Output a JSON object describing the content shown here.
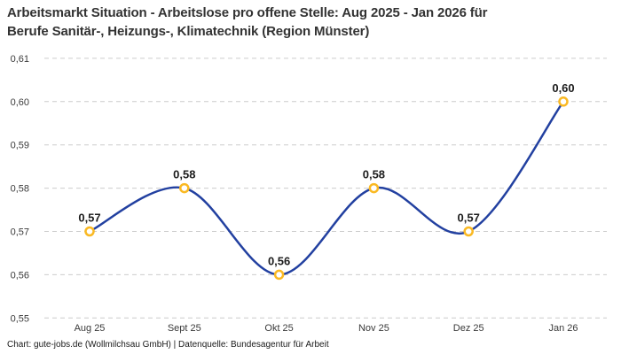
{
  "title": {
    "line1": "Arbeitsmarkt Situation - Arbeitslose pro offene Stelle: Aug 2025 - Jan 2026 für",
    "line2": "Berufe Sanitär-, Heizungs-, Klimatechnik (Region Münster)"
  },
  "footer": "Chart: gute-jobs.de (Wollmilchsau GmbH) | Datenquelle: Bundesagentur für Arbeit",
  "colors": {
    "line": "#2240a0",
    "marker_ring": "#fab923",
    "marker_fill": "#ffffff",
    "grid": "#cccccc"
  },
  "chart_data": {
    "type": "line",
    "title": "Arbeitsmarkt Situation - Arbeitslose pro offene Stelle: Aug 2025 - Jan 2026 für Berufe Sanitär-, Heizungs-, Klimatechnik (Region Münster)",
    "categories": [
      "Aug 25",
      "Sept 25",
      "Okt 25",
      "Nov 25",
      "Dez 25",
      "Jan 26"
    ],
    "values": [
      0.57,
      0.58,
      0.56,
      0.58,
      0.57,
      0.6
    ],
    "point_labels": [
      "0,57",
      "0,58",
      "0,56",
      "0,58",
      "0,57",
      "0,60"
    ],
    "y_ticks": [
      "0,61",
      "0,60",
      "0,59",
      "0,58",
      "0,57",
      "0,56",
      "0,55"
    ],
    "y_tick_values": [
      0.61,
      0.6,
      0.59,
      0.58,
      0.57,
      0.56,
      0.55
    ],
    "ylim": [
      0.55,
      0.61
    ],
    "xlabel": "",
    "ylabel": "",
    "grid": "dashed-horizontal",
    "legend": "none",
    "line_style": "smooth-spline",
    "marker_style": "open-circle"
  }
}
